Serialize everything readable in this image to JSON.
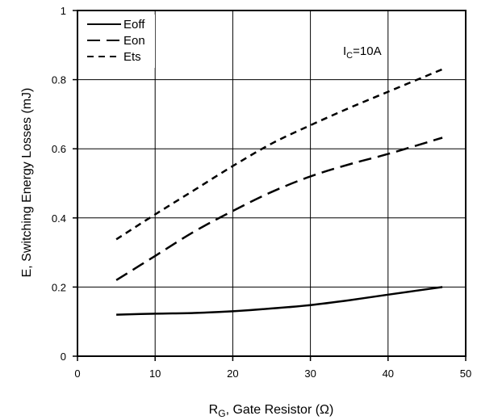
{
  "chart_data": {
    "type": "line",
    "xlabel_main": "R",
    "xlabel_sub": "G",
    "xlabel_rest": ", Gate Resistor (Ω)",
    "ylabel": "E, Switching Energy Losses (mJ)",
    "xlim": [
      0,
      50
    ],
    "ylim": [
      0,
      1
    ],
    "xticks": [
      0,
      10,
      20,
      30,
      40,
      50
    ],
    "xtick_labels": [
      "0",
      "10",
      "20",
      "30",
      "40",
      "50"
    ],
    "yticks": [
      0,
      0.2,
      0.4,
      0.6,
      0.8,
      1
    ],
    "ytick_labels": [
      "0",
      "0.2",
      "0.4",
      "0.6",
      "0.8",
      "1"
    ],
    "grid": true,
    "legend_position": "top-left",
    "annotation_main": "I",
    "annotation_sub": "C",
    "annotation_rest": "=10A",
    "series": [
      {
        "name": "Eoff",
        "style": "solid",
        "x": [
          5,
          10,
          15,
          20,
          25,
          30,
          35,
          40,
          47
        ],
        "y": [
          0.12,
          0.123,
          0.125,
          0.13,
          0.138,
          0.148,
          0.162,
          0.178,
          0.2
        ]
      },
      {
        "name": "Eon",
        "style": "long-dash",
        "x": [
          5,
          10,
          15,
          20,
          25,
          30,
          35,
          40,
          47
        ],
        "y": [
          0.22,
          0.29,
          0.36,
          0.42,
          0.475,
          0.52,
          0.555,
          0.585,
          0.632
        ]
      },
      {
        "name": "Ets",
        "style": "short-dash",
        "x": [
          5,
          10,
          15,
          20,
          25,
          30,
          35,
          40,
          47
        ],
        "y": [
          0.338,
          0.41,
          0.48,
          0.55,
          0.615,
          0.668,
          0.718,
          0.765,
          0.83
        ]
      }
    ]
  }
}
